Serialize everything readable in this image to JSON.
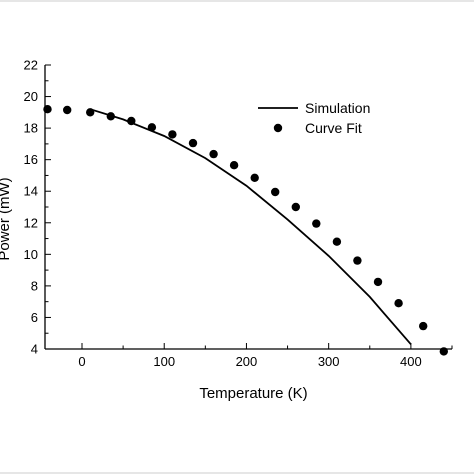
{
  "chart_data": {
    "type": "scatter",
    "xlabel": "Temperature (K)",
    "ylabel": "Power (mW)",
    "xlim": [
      -45,
      450
    ],
    "ylim": [
      4,
      22
    ],
    "x_ticks": [
      0,
      100,
      200,
      300,
      400
    ],
    "y_ticks": [
      4,
      6,
      8,
      10,
      12,
      14,
      16,
      18,
      20,
      22
    ],
    "legend_position": "top-right",
    "series": [
      {
        "name": "Simulation",
        "style": "line",
        "color": "#000000",
        "x": [
          10,
          50,
          100,
          150,
          200,
          250,
          300,
          350,
          400
        ],
        "y": [
          19.2,
          18.55,
          17.5,
          16.1,
          14.35,
          12.2,
          9.9,
          7.3,
          4.3
        ]
      },
      {
        "name": "Curve Fit",
        "style": "marker",
        "color": "#000000",
        "x": [
          -42,
          -18,
          10,
          35,
          60,
          85,
          110,
          135,
          160,
          185,
          210,
          235,
          260,
          285,
          310,
          335,
          360,
          385,
          415,
          440
        ],
        "y": [
          19.2,
          19.15,
          19.0,
          18.75,
          18.45,
          18.05,
          17.6,
          17.05,
          16.35,
          15.65,
          14.85,
          13.95,
          13.0,
          11.95,
          10.8,
          9.6,
          8.25,
          6.9,
          5.45,
          3.85
        ]
      }
    ]
  }
}
